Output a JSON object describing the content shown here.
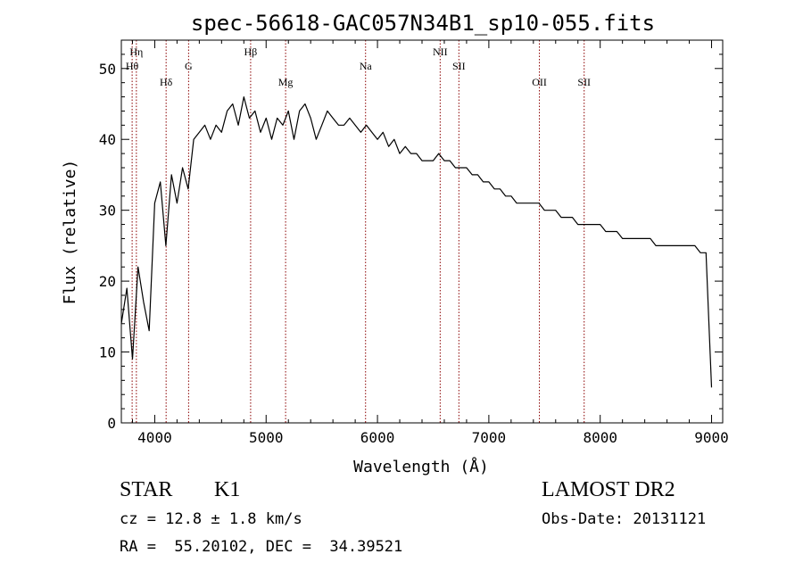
{
  "chart_data": {
    "type": "line",
    "title": "spec-56618-GAC057N34B1_sp10-055.fits",
    "xlabel": "Wavelength (Å)",
    "ylabel": "Flux (relative)",
    "xlim": [
      3700,
      9100
    ],
    "ylim": [
      0,
      54
    ],
    "x_ticks": [
      4000,
      5000,
      6000,
      7000,
      8000,
      9000
    ],
    "x_tick_labels": [
      "4000",
      "5000",
      "6000",
      "7000",
      "8000",
      "9000"
    ],
    "y_ticks": [
      0,
      10,
      20,
      30,
      40,
      50
    ],
    "y_tick_labels": [
      "0",
      "10",
      "20",
      "30",
      "40",
      "50"
    ],
    "grid": false,
    "line_color": "#000000",
    "marker_color": "#8b0000",
    "line_markers": [
      {
        "label": "Hη",
        "x": 3835,
        "row": 0
      },
      {
        "label": "Hθ",
        "x": 3797,
        "row": 1
      },
      {
        "label": "Hδ",
        "x": 4102,
        "row": 2
      },
      {
        "label": "G",
        "x": 4304,
        "row": 1
      },
      {
        "label": "Hβ",
        "x": 4861,
        "row": 0
      },
      {
        "label": "Mg",
        "x": 5175,
        "row": 2
      },
      {
        "label": "Na",
        "x": 5893,
        "row": 1
      },
      {
        "label": "NII",
        "x": 6563,
        "row": 0
      },
      {
        "label": "SII",
        "x": 6731,
        "row": 1
      },
      {
        "label": "OII",
        "x": 7454,
        "row": 2
      },
      {
        "label": "SII",
        "x": 7856,
        "row": 2
      }
    ],
    "series": [
      {
        "x": [
          3700,
          3750,
          3800,
          3850,
          3900,
          3950,
          4000,
          4050,
          4100,
          4150,
          4200,
          4250,
          4300,
          4350,
          4400,
          4450,
          4500,
          4550,
          4600,
          4650,
          4700,
          4750,
          4800,
          4850,
          4900,
          4950,
          5000,
          5050,
          5100,
          5150,
          5200,
          5250,
          5300,
          5350,
          5400,
          5450,
          5500,
          5550,
          5600,
          5650,
          5700,
          5750,
          5800,
          5850,
          5900,
          5950,
          6000,
          6050,
          6100,
          6150,
          6200,
          6250,
          6300,
          6350,
          6400,
          6450,
          6500,
          6550,
          6600,
          6650,
          6700,
          6750,
          6800,
          6850,
          6900,
          6950,
          7000,
          7050,
          7100,
          7150,
          7200,
          7250,
          7300,
          7350,
          7400,
          7450,
          7500,
          7550,
          7600,
          7650,
          7700,
          7750,
          7800,
          7850,
          7900,
          7950,
          8000,
          8050,
          8100,
          8150,
          8200,
          8250,
          8300,
          8350,
          8400,
          8450,
          8500,
          8550,
          8600,
          8650,
          8700,
          8750,
          8800,
          8850,
          8900,
          8950,
          9000
        ],
        "y": [
          14,
          19,
          9,
          22,
          17,
          13,
          31,
          34,
          25,
          35,
          31,
          36,
          33,
          40,
          41,
          42,
          40,
          42,
          41,
          44,
          45,
          42,
          46,
          43,
          44,
          41,
          43,
          40,
          43,
          42,
          44,
          40,
          44,
          45,
          43,
          40,
          42,
          44,
          43,
          42,
          42,
          43,
          42,
          41,
          42,
          41,
          40,
          41,
          39,
          40,
          38,
          39,
          38,
          38,
          37,
          37,
          37,
          38,
          37,
          37,
          36,
          36,
          36,
          35,
          35,
          34,
          34,
          33,
          33,
          32,
          32,
          31,
          31,
          31,
          31,
          31,
          30,
          30,
          30,
          29,
          29,
          29,
          28,
          28,
          28,
          28,
          28,
          27,
          27,
          27,
          26,
          26,
          26,
          26,
          26,
          26,
          25,
          25,
          25,
          25,
          25,
          25,
          25,
          25,
          24,
          24,
          5
        ]
      }
    ]
  },
  "info": {
    "object_class": "STAR",
    "subclass": "K1",
    "release": "LAMOST DR2",
    "cz": "cz = 12.8 ± 1.8 km/s",
    "obs_date": "Obs-Date: 20131121",
    "coords": "RA =  55.20102, DEC =  34.39521"
  }
}
